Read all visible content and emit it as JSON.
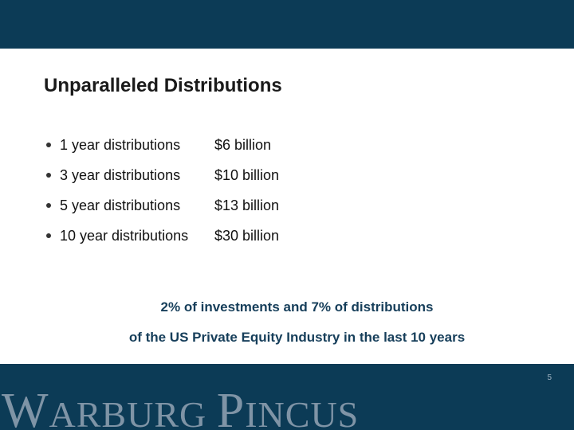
{
  "slide": {
    "title": "Unparalleled Distributions",
    "items": [
      {
        "label": "1 year distributions",
        "value": "$6 billion"
      },
      {
        "label": "3 year distributions",
        "value": "$10 billion"
      },
      {
        "label": "5 year distributions",
        "value": "$13 billion"
      },
      {
        "label": "10 year distributions",
        "value": "$30 billion"
      }
    ],
    "callout_line1": "2% of investments and 7% of distributions",
    "callout_line2": "of the US Private Equity Industry in the last 10 years",
    "page_number": "5",
    "logo_text": "WARBURG PINCUS"
  }
}
